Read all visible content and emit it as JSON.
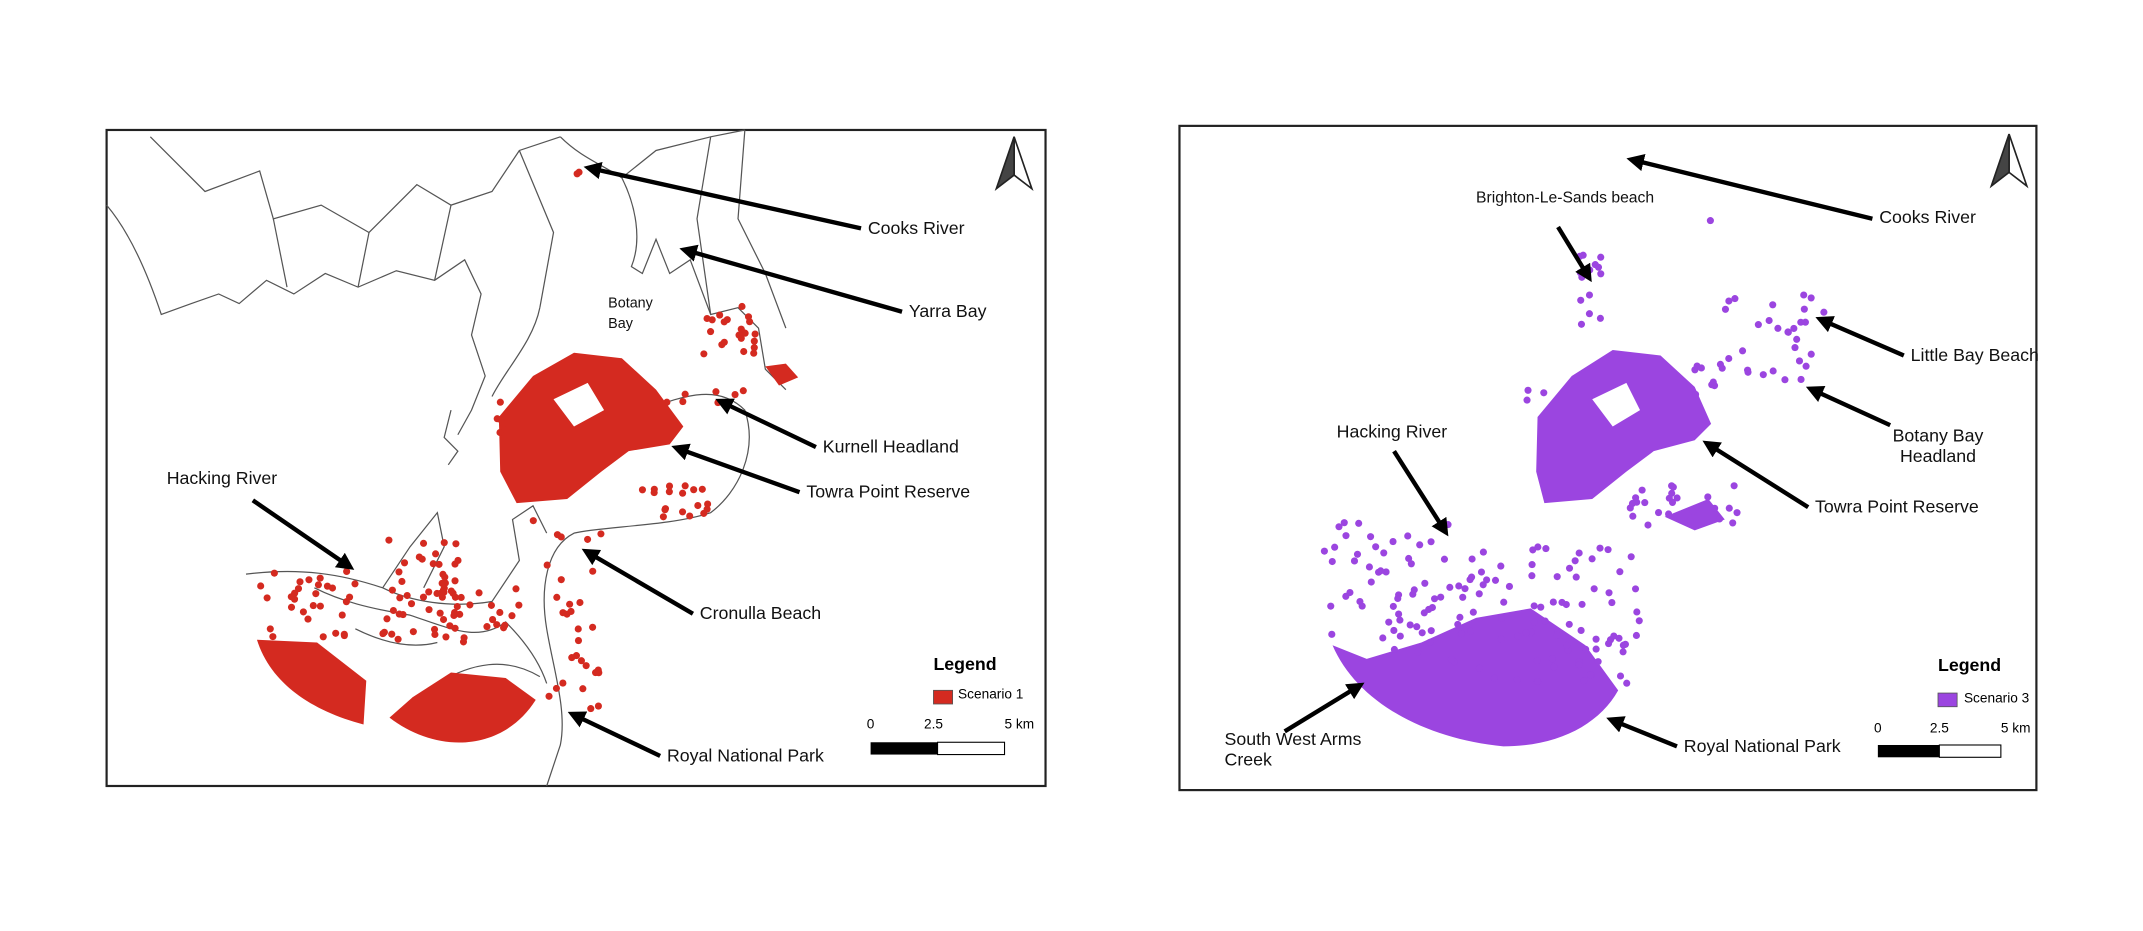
{
  "panels": [
    {
      "labels": [
        {
          "lines": [
            "Cooks River"
          ]
        },
        {
          "lines": [
            "Yarra Bay"
          ]
        },
        {
          "lines": [
            "Botany",
            "Bay"
          ]
        },
        {
          "lines": [
            "Kurnell Headland"
          ]
        },
        {
          "lines": [
            "Towra Point Reserve"
          ]
        },
        {
          "lines": [
            "Hacking River"
          ]
        },
        {
          "lines": [
            "Cronulla Beach"
          ]
        },
        {
          "lines": [
            "Royal National Park"
          ]
        }
      ],
      "legend": {
        "title": "Legend",
        "item": "Scenario 1"
      },
      "scale_bar": [
        "0",
        "2.5",
        "5 km"
      ]
    },
    {
      "labels": [
        {
          "lines": [
            "Brighton-Le-Sands beach"
          ]
        },
        {
          "lines": [
            "Cooks River"
          ]
        },
        {
          "lines": [
            "Little Bay Beach"
          ]
        },
        {
          "lines": [
            "Botany Bay",
            "Headland"
          ]
        },
        {
          "lines": [
            "Towra Point Reserve"
          ]
        },
        {
          "lines": [
            "Hacking River"
          ]
        },
        {
          "lines": [
            "South West Arms",
            "Creek"
          ]
        },
        {
          "lines": [
            "Royal National Park"
          ]
        }
      ],
      "legend": {
        "title": "Legend",
        "item": "Scenario 3"
      },
      "scale_bar": [
        "0",
        "2.5",
        "5 km"
      ]
    }
  ]
}
